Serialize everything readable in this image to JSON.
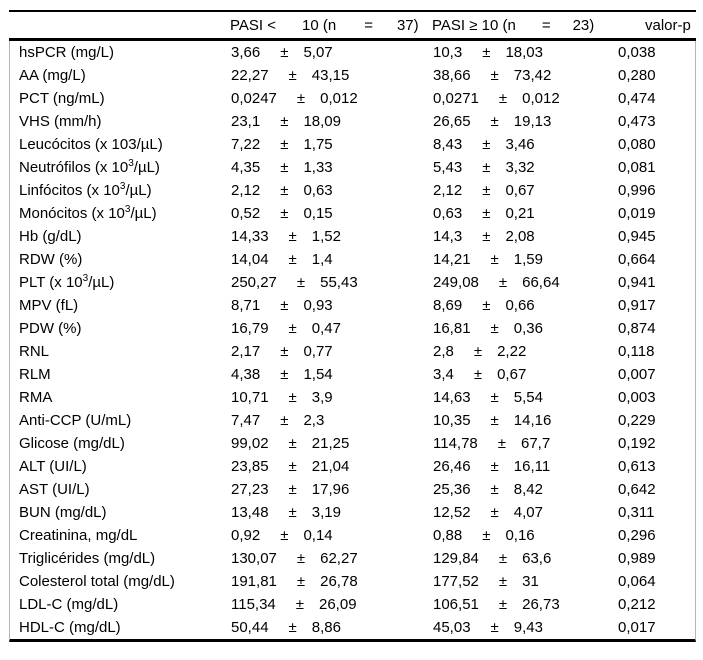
{
  "table": {
    "pm_symbol": "±",
    "header": {
      "group1": {
        "p1": "PASI <",
        "p2": "10 (n",
        "p3": "=",
        "p4": "37)"
      },
      "group2": {
        "p1": "PASI ≥ 10 (n",
        "p2": "=",
        "p3": "23)"
      },
      "pvalue_label": "valor-p"
    },
    "rows": [
      {
        "label_pre": "hsPCR (mg/L)",
        "mean1": "3,66",
        "sd1": "5,07",
        "mean2": "10,3",
        "sd2": "18,03",
        "p": "0,038"
      },
      {
        "label_pre": "AA (mg/L)",
        "mean1": "22,27",
        "sd1": "43,15",
        "mean2": "38,66",
        "sd2": "73,42",
        "p": "0,280"
      },
      {
        "label_pre": "PCT (ng/mL)",
        "mean1": "0,0247",
        "sd1": "0,012",
        "mean2": "0,0271",
        "sd2": "0,012",
        "p": "0,474"
      },
      {
        "label_pre": "VHS (mm/h)",
        "mean1": "23,1",
        "sd1": "18,09",
        "mean2": "26,65",
        "sd2": "19,13",
        "p": "0,473"
      },
      {
        "label_pre": "Leucócitos (x 103/µL)",
        "mean1": "7,22",
        "sd1": "1,75",
        "mean2": "8,43",
        "sd2": "3,46",
        "p": "0,080"
      },
      {
        "label_pre": "Neutrófilos (x 10",
        "label_sup": "3",
        "label_post": "/µL)",
        "mean1": "4,35",
        "sd1": "1,33",
        "mean2": "5,43",
        "sd2": "3,32",
        "p": "0,081"
      },
      {
        "label_pre": "Linfócitos (x 10",
        "label_sup": "3",
        "label_post": "/µL)",
        "mean1": "2,12",
        "sd1": "0,63",
        "mean2": "2,12",
        "sd2": "0,67",
        "p": "0,996"
      },
      {
        "label_pre": "Monócitos (x 10",
        "label_sup": "3",
        "label_post": "/µL)",
        "mean1": "0,52",
        "sd1": "0,15",
        "mean2": "0,63",
        "sd2": "0,21",
        "p": "0,019"
      },
      {
        "label_pre": "Hb (g/dL)",
        "mean1": "14,33",
        "sd1": "1,52",
        "mean2": "14,3",
        "sd2": "2,08",
        "p": "0,945"
      },
      {
        "label_pre": "RDW (%)",
        "mean1": "14,04",
        "sd1": "1,4",
        "mean2": "14,21",
        "sd2": "1,59",
        "p": "0,664"
      },
      {
        "label_pre": "PLT (x 10",
        "label_sup": "3",
        "label_post": "/µL)",
        "mean1": "250,27",
        "sd1": "55,43",
        "mean2": "249,08",
        "sd2": "66,64",
        "p": "0,941"
      },
      {
        "label_pre": "MPV (fL)",
        "mean1": "8,71",
        "sd1": "0,93",
        "mean2": "8,69",
        "sd2": "0,66",
        "p": "0,917"
      },
      {
        "label_pre": "PDW (%)",
        "mean1": "16,79",
        "sd1": "0,47",
        "mean2": "16,81",
        "sd2": "0,36",
        "p": "0,874"
      },
      {
        "label_pre": "RNL",
        "mean1": "2,17",
        "sd1": "0,77",
        "mean2": "2,8",
        "sd2": "2,22",
        "p": "0,118"
      },
      {
        "label_pre": "RLM",
        "mean1": "4,38",
        "sd1": "1,54",
        "mean2": "3,4",
        "sd2": "0,67",
        "p": "0,007"
      },
      {
        "label_pre": "RMA",
        "mean1": "10,71",
        "sd1": "3,9",
        "mean2": "14,63",
        "sd2": "5,54",
        "p": "0,003"
      },
      {
        "label_pre": "Anti-CCP (U/mL)",
        "mean1": "7,47",
        "sd1": "2,3",
        "mean2": "10,35",
        "sd2": "14,16",
        "p": "0,229"
      },
      {
        "label_pre": "Glicose (mg/dL)",
        "mean1": "99,02",
        "sd1": "21,25",
        "mean2": "114,78",
        "sd2": "67,7",
        "p": "0,192"
      },
      {
        "label_pre": "ALT (UI/L)",
        "mean1": "23,85",
        "sd1": "21,04",
        "mean2": "26,46",
        "sd2": "16,11",
        "p": "0,613"
      },
      {
        "label_pre": "AST (UI/L)",
        "mean1": "27,23",
        "sd1": "17,96",
        "mean2": "25,36",
        "sd2": "8,42",
        "p": "0,642"
      },
      {
        "label_pre": "BUN (mg/dL)",
        "mean1": "13,48",
        "sd1": "3,19",
        "mean2": "12,52",
        "sd2": "4,07",
        "p": "0,311"
      },
      {
        "label_pre": "Creatinina, mg/dL",
        "mean1": "0,92",
        "sd1": "0,14",
        "mean2": "0,88",
        "sd2": "0,16",
        "p": "0,296"
      },
      {
        "label_pre": "Triglicérides (mg/dL)",
        "mean1": "130,07",
        "sd1": "62,27",
        "mean2": "129,84",
        "sd2": "63,6",
        "p": "0,989"
      },
      {
        "label_pre": "Colesterol total (mg/dL)",
        "mean1": "191,81",
        "sd1": "26,78",
        "mean2": "177,52",
        "sd2": "31",
        "p": "0,064"
      },
      {
        "label_pre": "LDL-C (mg/dL)",
        "mean1": "115,34",
        "sd1": "26,09",
        "mean2": "106,51",
        "sd2": "26,73",
        "p": "0,212"
      },
      {
        "label_pre": "HDL-C (mg/dL)",
        "mean1": "50,44",
        "sd1": "8,86",
        "mean2": "45,03",
        "sd2": "9,43",
        "p": "0,017"
      }
    ]
  }
}
